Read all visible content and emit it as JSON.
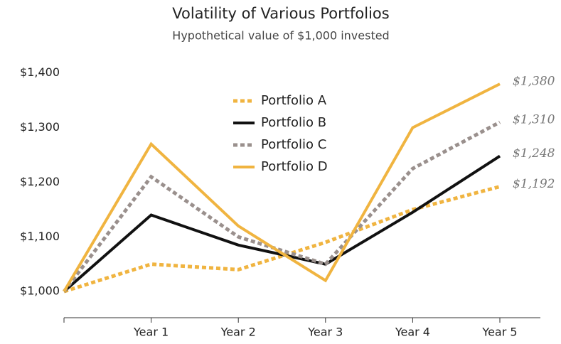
{
  "chart_data": {
    "type": "line",
    "title": "Volatility of Various Portfolios",
    "subtitle": "Hypothetical value of $1,000 invested",
    "categories": [
      null,
      "Year 1",
      "Year 2",
      "Year 3",
      "Year 4",
      "Year 5"
    ],
    "series": [
      {
        "name": "Portfolio A",
        "color": "#f0b440",
        "style": "dashed",
        "values": [
          1000,
          1050,
          1040,
          1090,
          1150,
          1192
        ],
        "value_labels": [
          null,
          null,
          null,
          null,
          null,
          "$1,192"
        ]
      },
      {
        "name": "Portfolio B",
        "color": "#111111",
        "style": "solid",
        "values": [
          1000,
          1140,
          1085,
          1050,
          1145,
          1248
        ],
        "value_labels": [
          null,
          null,
          null,
          null,
          null,
          "$1,248"
        ]
      },
      {
        "name": "Portfolio C",
        "color": "#9a908d",
        "style": "dashed",
        "values": [
          1000,
          1210,
          1100,
          1050,
          1225,
          1310
        ],
        "value_labels": [
          null,
          null,
          null,
          null,
          null,
          "$1,310"
        ]
      },
      {
        "name": "Portfolio D",
        "color": "#f0b440",
        "style": "solid",
        "values": [
          1000,
          1270,
          1120,
          1020,
          1300,
          1380
        ],
        "value_labels": [
          null,
          null,
          null,
          null,
          null,
          "$1,380"
        ]
      }
    ],
    "ylim": [
      952,
      1440
    ],
    "yticks": [
      {
        "value": 1000,
        "label": "$1,000"
      },
      {
        "value": 1100,
        "label": "$1,100"
      },
      {
        "value": 1200,
        "label": "$1,200"
      },
      {
        "value": 1300,
        "label": "$1,300"
      },
      {
        "value": 1400,
        "label": "$1,400"
      }
    ],
    "grid": false,
    "legend": "top-center"
  }
}
